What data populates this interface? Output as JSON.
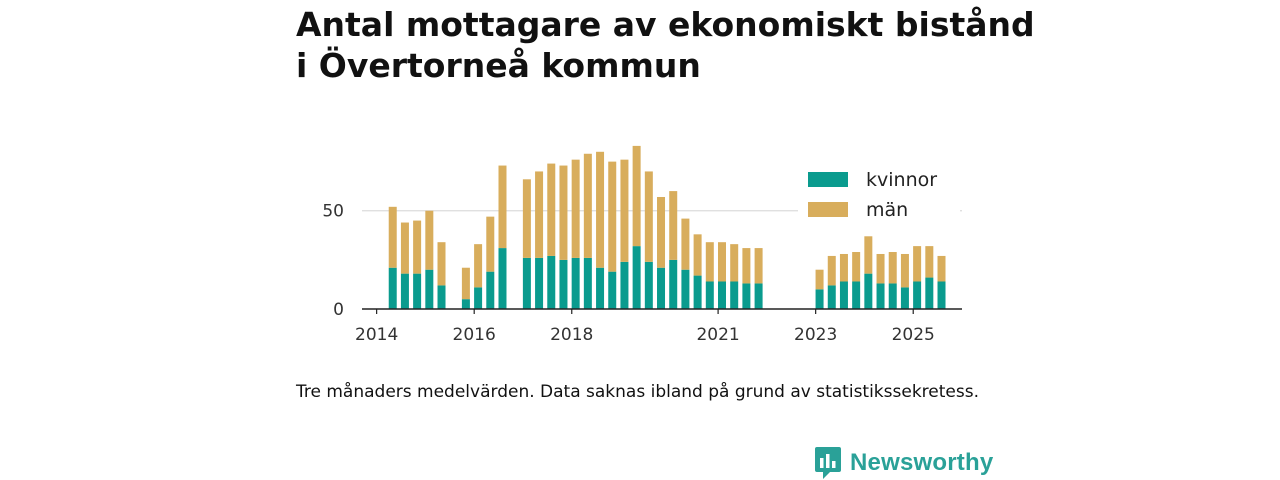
{
  "title": {
    "line1": "Antal mottagare av ekonomiskt bistånd",
    "line2": "i Övertorneå kommun"
  },
  "caption": "Tre månaders medelvärden. Data saknas ibland på grund av statistikssekretess.",
  "brand": {
    "name": "Newsworthy",
    "icon": "newsworthy-logo-icon"
  },
  "colors": {
    "kvinnor": "#0a9b8e",
    "man": "#d8ad5c",
    "grid": "#dcdcdc",
    "axis": "#222222",
    "brand": "#2aa198"
  },
  "chart_data": {
    "type": "bar",
    "stacked": true,
    "title": "Antal mottagare av ekonomiskt bistånd i Övertorneå kommun",
    "xlabel": "",
    "ylabel": "",
    "ylim": [
      0,
      86
    ],
    "yticks": [
      0,
      50
    ],
    "xlim": [
      2013.7,
      2026.0
    ],
    "xticks": [
      {
        "value": 2014.0,
        "label": "2014"
      },
      {
        "value": 2016.0,
        "label": "2016"
      },
      {
        "value": 2018.0,
        "label": "2018"
      },
      {
        "value": 2021.0,
        "label": "2021"
      },
      {
        "value": 2023.0,
        "label": "2023"
      },
      {
        "value": 2025.0,
        "label": "2025"
      }
    ],
    "legend": {
      "position": "top-right",
      "entries": [
        "kvinnor",
        "män"
      ]
    },
    "x": [
      2014.33,
      2014.58,
      2014.83,
      2015.08,
      2015.33,
      2015.83,
      2016.08,
      2016.33,
      2016.58,
      2017.08,
      2017.33,
      2017.58,
      2017.83,
      2018.08,
      2018.33,
      2018.58,
      2018.83,
      2019.08,
      2019.33,
      2019.58,
      2019.83,
      2020.08,
      2020.33,
      2020.58,
      2020.83,
      2021.08,
      2021.33,
      2021.58,
      2021.83,
      2023.08,
      2023.33,
      2023.58,
      2023.83,
      2024.08,
      2024.33,
      2024.58,
      2024.83,
      2025.08,
      2025.33,
      2025.58
    ],
    "series": [
      {
        "name": "kvinnor",
        "values": [
          21,
          18,
          18,
          20,
          12,
          5,
          11,
          19,
          31,
          26,
          26,
          27,
          25,
          26,
          26,
          21,
          19,
          24,
          32,
          24,
          21,
          25,
          20,
          17,
          14,
          14,
          14,
          13,
          13,
          10,
          12,
          14,
          14,
          18,
          13,
          13,
          11,
          14,
          16,
          14
        ]
      },
      {
        "name": "män",
        "values": [
          31,
          26,
          27,
          30,
          22,
          16,
          22,
          28,
          42,
          40,
          44,
          47,
          48,
          50,
          53,
          59,
          56,
          52,
          51,
          46,
          36,
          35,
          26,
          21,
          20,
          20,
          19,
          18,
          18,
          10,
          15,
          14,
          15,
          19,
          15,
          16,
          17,
          18,
          16,
          13
        ]
      }
    ]
  }
}
